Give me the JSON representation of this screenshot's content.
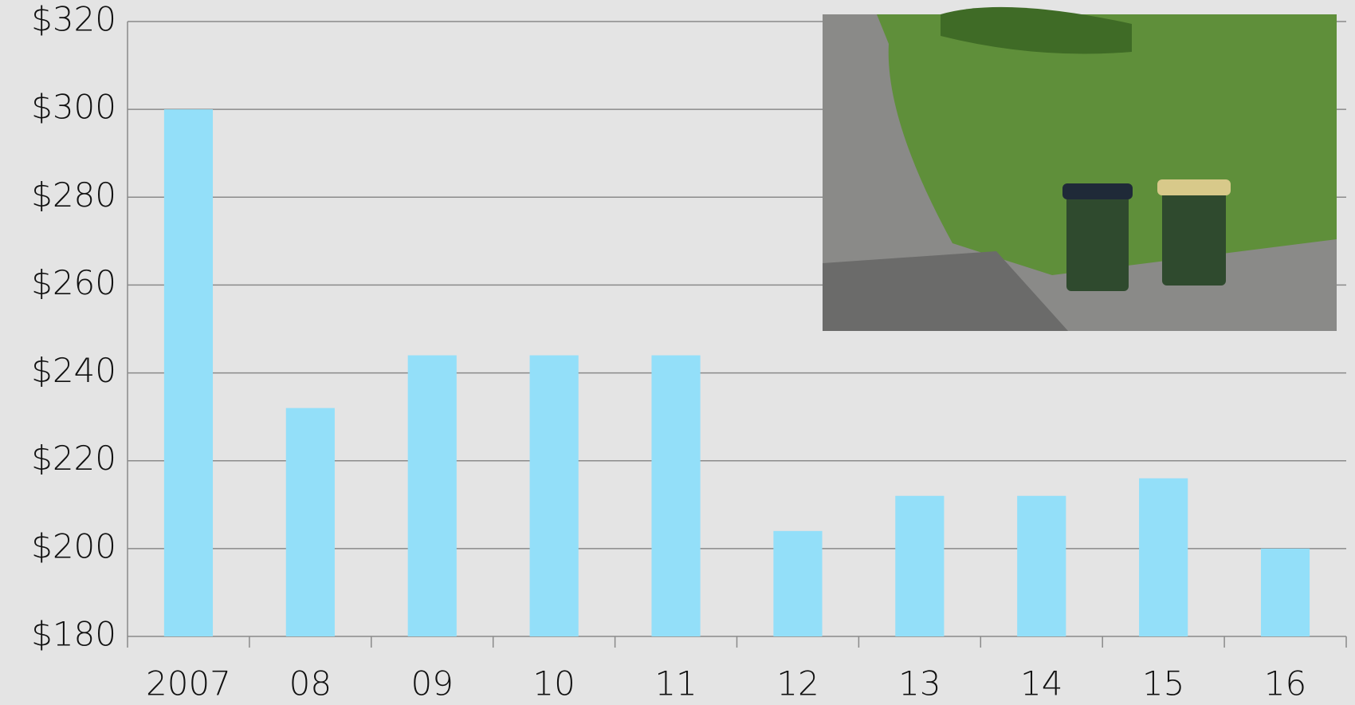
{
  "chart_data": {
    "type": "bar",
    "categories": [
      "2007",
      "08",
      "09",
      "10",
      "11",
      "12",
      "13",
      "14",
      "15",
      "16"
    ],
    "values": [
      300,
      232,
      244,
      244,
      244,
      204,
      212,
      212,
      216,
      200
    ],
    "color": "#93dff9",
    "ylim": [
      180,
      320
    ],
    "yticks": [
      {
        "value": 180,
        "label": "$180"
      },
      {
        "value": 200,
        "label": "$200"
      },
      {
        "value": 220,
        "label": "$220"
      },
      {
        "value": 240,
        "label": "$240"
      },
      {
        "value": 260,
        "label": "$260"
      },
      {
        "value": 280,
        "label": "$280"
      },
      {
        "value": 300,
        "label": "$300"
      },
      {
        "value": 320,
        "label": "$320"
      }
    ],
    "grid": true
  }
}
